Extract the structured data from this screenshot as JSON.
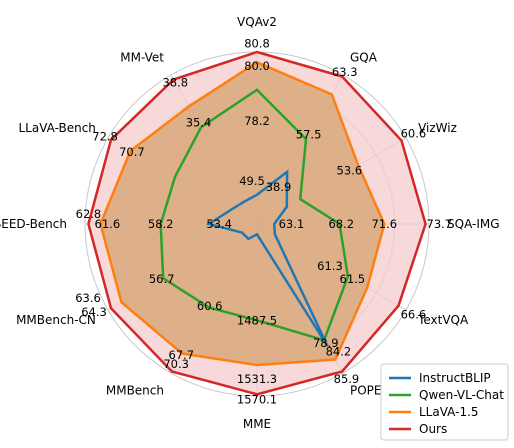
{
  "chart_data": {
    "type": "radar",
    "axes": [
      "VQAv2",
      "GQA",
      "VizWiz",
      "SQA-IMG",
      "TextVQA",
      "POPE",
      "MME",
      "MMBench",
      "MMBench-CN",
      "SEED-Bench",
      "LLaVA-Bench",
      "MM-Vet"
    ],
    "series": [
      {
        "name": "InstructBLIP",
        "color": "#1f77b4",
        "r": [
          0.17,
          0.35,
          0.2,
          0.1,
          0.12,
          0.82,
          0.06,
          0.1,
          0.1,
          0.28,
          0.17,
          0.15
        ],
        "fill": false
      },
      {
        "name": "Qwen-VL-Chat",
        "color": "#2ca02c",
        "r": [
          0.78,
          0.57,
          0.29,
          0.48,
          0.61,
          0.78,
          0.56,
          0.56,
          0.63,
          0.56,
          0.55,
          0.65
        ],
        "fill": false
      },
      {
        "name": "LLaVA-1.5",
        "color": "#ff7f0e",
        "r": [
          0.94,
          0.87,
          0.68,
          0.74,
          0.74,
          0.91,
          0.82,
          0.87,
          0.91,
          0.91,
          0.85,
          0.79
        ],
        "fill": true,
        "fill_color": "#d9a87a"
      },
      {
        "name": "Ours",
        "color": "#d62728",
        "r": [
          1.0,
          0.99,
          0.97,
          0.98,
          0.95,
          0.99,
          0.99,
          0.99,
          0.98,
          0.98,
          0.98,
          0.97
        ],
        "fill": true,
        "fill_color": "#f6cccc"
      }
    ],
    "tick_labels": [
      {
        "axis": 0,
        "r": 0.25,
        "text": "49.5",
        "dx": -5,
        "dy": 0
      },
      {
        "axis": 0,
        "r": 0.6,
        "text": "78.2",
        "dx": 0,
        "dy": 0
      },
      {
        "axis": 0,
        "r": 0.92,
        "text": "80.0",
        "dx": 0,
        "dy": 0
      },
      {
        "axis": 0,
        "r": 1.05,
        "text": "80.8",
        "dx": 0,
        "dy": 0
      },
      {
        "axis": 1,
        "r": 0.25,
        "text": "38.9",
        "dx": 0,
        "dy": 0
      },
      {
        "axis": 1,
        "r": 0.6,
        "text": "57.5",
        "dx": 0,
        "dy": 0
      },
      {
        "axis": 1,
        "r": 1.02,
        "text": "63.3",
        "dx": 0,
        "dy": 0
      },
      {
        "axis": 2,
        "r": 0.62,
        "text": "53.6",
        "dx": 0,
        "dy": 0
      },
      {
        "axis": 2,
        "r": 1.05,
        "text": "60.6",
        "dx": 0,
        "dy": 0
      },
      {
        "axis": 3,
        "r": 0.2,
        "text": "63.1",
        "dx": 0,
        "dy": 0
      },
      {
        "axis": 3,
        "r": 0.49,
        "text": "68.2",
        "dx": 0,
        "dy": 0
      },
      {
        "axis": 3,
        "r": 0.74,
        "text": "71.6",
        "dx": 0,
        "dy": 0
      },
      {
        "axis": 3,
        "r": 1.06,
        "text": "73.7",
        "dx": 0,
        "dy": 0
      },
      {
        "axis": 4,
        "r": 0.49,
        "text": "61.3",
        "dx": 0,
        "dy": 0
      },
      {
        "axis": 4,
        "r": 0.64,
        "text": "61.5",
        "dx": 0,
        "dy": 0
      },
      {
        "axis": 4,
        "r": 1.05,
        "text": "66.6",
        "dx": 0,
        "dy": 0
      },
      {
        "axis": 5,
        "r": 0.8,
        "text": "78.9",
        "dx": 0,
        "dy": 0
      },
      {
        "axis": 5,
        "r": 0.83,
        "text": "84.2",
        "dx": 10,
        "dy": 4
      },
      {
        "axis": 5,
        "r": 1.04,
        "text": "85.9",
        "dx": 0,
        "dy": 0
      },
      {
        "axis": 6,
        "r": 0.56,
        "text": "1487.5",
        "dx": 0,
        "dy": 0
      },
      {
        "axis": 6,
        "r": 0.9,
        "text": "1531.3",
        "dx": 0,
        "dy": 0
      },
      {
        "axis": 6,
        "r": 1.02,
        "text": "1570.1",
        "dx": 0,
        "dy": 0
      },
      {
        "axis": 7,
        "r": 0.55,
        "text": "60.6",
        "dx": 0,
        "dy": 0
      },
      {
        "axis": 7,
        "r": 0.88,
        "text": "67.7",
        "dx": 0,
        "dy": 0
      },
      {
        "axis": 7,
        "r": 0.94,
        "text": "70.3",
        "dx": 0,
        "dy": 0
      },
      {
        "axis": 8,
        "r": 0.64,
        "text": "56.7",
        "dx": 0,
        "dy": 0
      },
      {
        "axis": 8,
        "r": 1.0,
        "text": "63.6",
        "dx": -20,
        "dy": -12
      },
      {
        "axis": 8,
        "r": 1.0,
        "text": "64.3",
        "dx": -14,
        "dy": 2
      },
      {
        "axis": 9,
        "r": 0.22,
        "text": "53.4",
        "dx": 0,
        "dy": 0
      },
      {
        "axis": 9,
        "r": 0.56,
        "text": "58.2",
        "dx": 0,
        "dy": 0
      },
      {
        "axis": 9,
        "r": 0.87,
        "text": "61.6",
        "dx": 0,
        "dy": 0
      },
      {
        "axis": 9,
        "r": 0.98,
        "text": "62.8",
        "dx": 0,
        "dy": -10
      },
      {
        "axis": 10,
        "r": 0.84,
        "text": "70.7",
        "dx": 0,
        "dy": 0
      },
      {
        "axis": 10,
        "r": 1.02,
        "text": "72.8",
        "dx": 0,
        "dy": 0
      },
      {
        "axis": 11,
        "r": 0.68,
        "text": "35.4",
        "dx": 0,
        "dy": 0
      },
      {
        "axis": 11,
        "r": 0.95,
        "text": "38.8",
        "dx": 0,
        "dy": 0
      }
    ],
    "grid": true,
    "legend_position": "bottom-right"
  }
}
